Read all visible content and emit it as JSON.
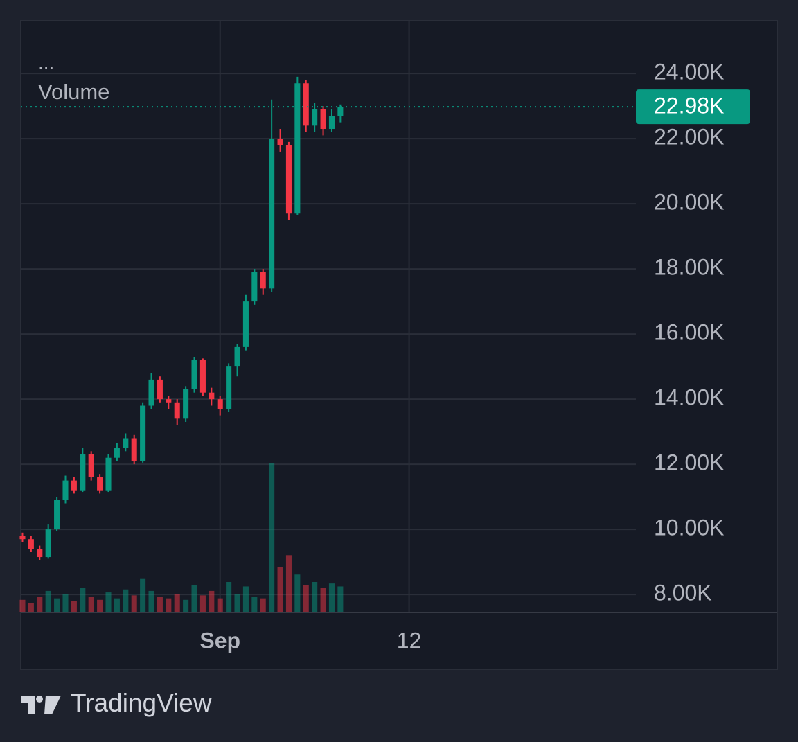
{
  "chart_data": {
    "type": "candlestick",
    "indicator_menu": "...",
    "volume_label": "Volume",
    "brand": "TradingView",
    "x": [
      -11.5,
      -11,
      -10.5,
      -10,
      -9.5,
      -9,
      -8.5,
      -8,
      -7.5,
      -7,
      -6.5,
      -6,
      -5.5,
      -5,
      -4.5,
      -4,
      -3.5,
      -3,
      -2.5,
      -2,
      -1.5,
      -1,
      -0.5,
      0,
      0.5,
      1,
      1.5,
      2,
      2.5,
      3,
      3.5,
      4,
      4.5,
      5,
      5.5,
      6,
      6.5,
      7
    ],
    "open": [
      9800,
      9700,
      9400,
      9150,
      10000,
      10900,
      11500,
      11200,
      12300,
      11600,
      11200,
      12200,
      12500,
      12800,
      12100,
      13800,
      14600,
      14000,
      13900,
      13400,
      14300,
      15200,
      14200,
      14000,
      13700,
      15000,
      15600,
      17000,
      17900,
      17400,
      22000,
      21800,
      19700,
      23700,
      22400,
      22900,
      22300,
      22700
    ],
    "high": [
      9900,
      9800,
      9500,
      10150,
      11000,
      11650,
      11600,
      12500,
      12400,
      11700,
      12300,
      12650,
      12950,
      12900,
      13900,
      14800,
      14700,
      14100,
      14000,
      14400,
      15300,
      15250,
      14350,
      14100,
      15100,
      15700,
      17200,
      18000,
      18000,
      23200,
      22300,
      21900,
      23900,
      23800,
      23100,
      23000,
      22900,
      23050
    ],
    "low": [
      9600,
      9300,
      9050,
      9100,
      9950,
      10800,
      11100,
      11150,
      11500,
      11100,
      11150,
      12100,
      12400,
      12000,
      12050,
      13700,
      13900,
      13700,
      13200,
      13300,
      14200,
      14100,
      13800,
      13500,
      13600,
      14700,
      15500,
      16900,
      17200,
      17300,
      21600,
      19500,
      19650,
      22200,
      22200,
      22100,
      22200,
      22500
    ],
    "close": [
      9700,
      9400,
      9150,
      10000,
      10900,
      11500,
      11200,
      12300,
      11600,
      11200,
      12200,
      12500,
      12800,
      12100,
      13800,
      14600,
      14000,
      13900,
      13400,
      14300,
      15200,
      14200,
      14000,
      13700,
      15000,
      15600,
      17000,
      17900,
      17400,
      22000,
      21800,
      19700,
      23700,
      22400,
      22900,
      22300,
      22700,
      22980
    ],
    "volume": [
      8,
      6,
      10,
      14,
      9,
      12,
      7,
      16,
      10,
      8,
      13,
      9,
      15,
      11,
      22,
      14,
      10,
      9,
      12,
      8,
      18,
      11,
      14,
      9,
      20,
      12,
      17,
      10,
      9,
      100,
      30,
      38,
      25,
      18,
      20,
      16,
      19,
      17
    ],
    "volume_lim": [
      0,
      100
    ],
    "up_color": "#089981",
    "down_color": "#f23645",
    "xlim": [
      -11.6,
      24.2
    ],
    "xticks": [
      {
        "value": 0,
        "label": "Sep"
      },
      {
        "value": 11,
        "label": "12"
      }
    ],
    "ylim": [
      7470,
      25620
    ],
    "yticks": [
      {
        "value": 8000,
        "label": "8.00K"
      },
      {
        "value": 10000,
        "label": "10.00K"
      },
      {
        "value": 12000,
        "label": "12.00K"
      },
      {
        "value": 14000,
        "label": "14.00K"
      },
      {
        "value": 16000,
        "label": "16.00K"
      },
      {
        "value": 18000,
        "label": "18.00K"
      },
      {
        "value": 20000,
        "label": "20.00K"
      },
      {
        "value": 22000,
        "label": "22.00K"
      },
      {
        "value": 24000,
        "label": "24.00K"
      }
    ],
    "price_line": {
      "value": 22980,
      "label": "22.98K"
    },
    "grid": true
  }
}
